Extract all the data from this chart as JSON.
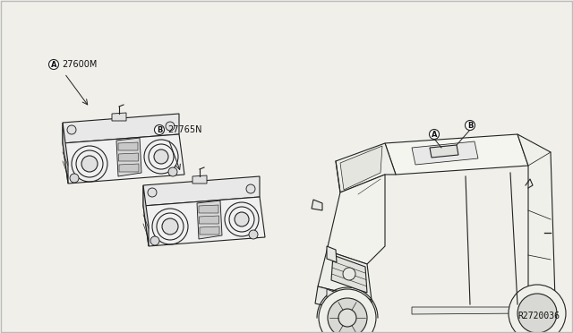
{
  "background_color": "#f0efea",
  "border_color": "#bbbbbb",
  "ref_number": "R2720036",
  "label_A_text": "27600M",
  "label_B_text": "27765N",
  "fig_width": 6.4,
  "fig_height": 3.72,
  "dpi": 100,
  "text_color": "#111111",
  "line_color": "#222222",
  "font_size_labels": 7,
  "font_size_ref": 7
}
